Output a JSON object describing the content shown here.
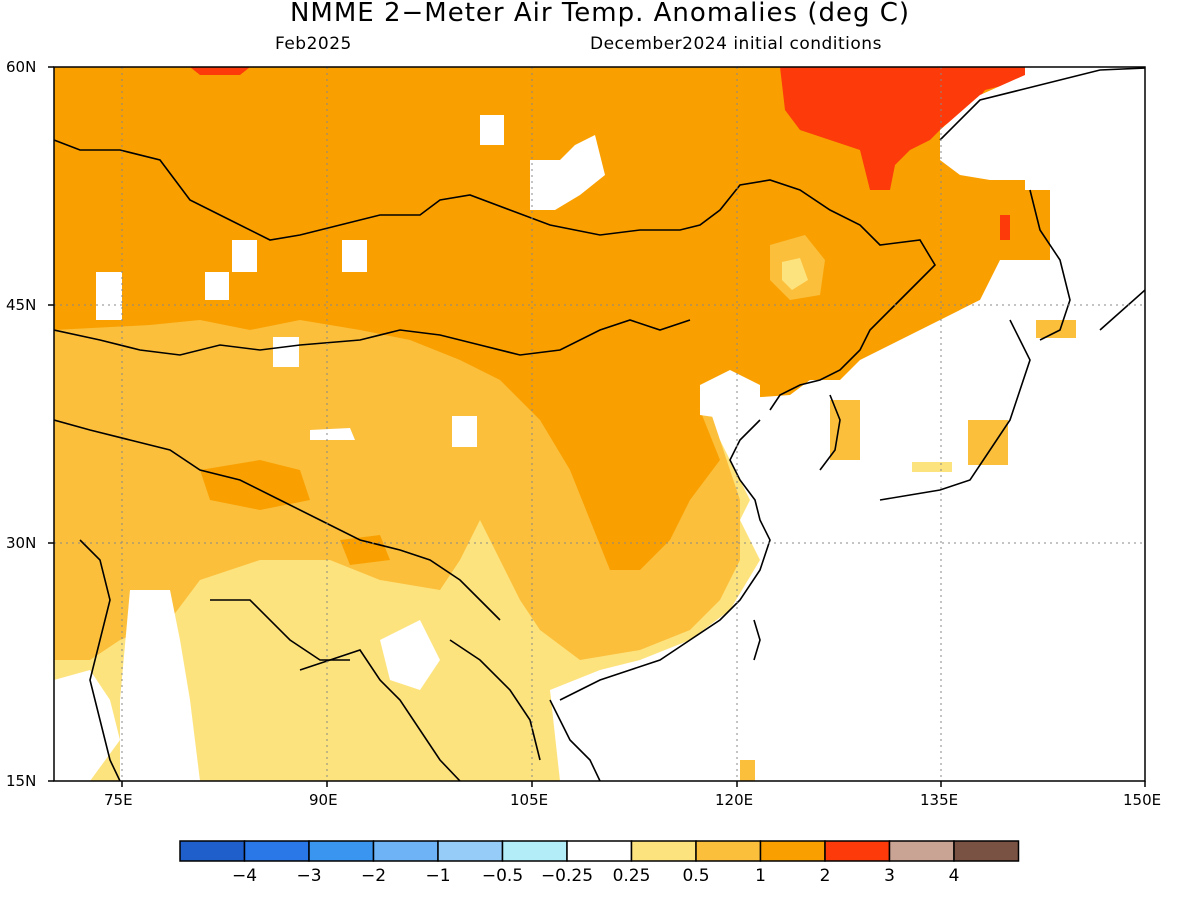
{
  "title": "NMME 2−Meter Air Temp. Anomalies (deg C)",
  "valid_month": "Feb2025",
  "init_conditions": "December2024 initial conditions",
  "lat_labels": [
    "60N",
    "45N",
    "30N",
    "15N"
  ],
  "lon_labels": [
    "75E",
    "90E",
    "105E",
    "120E",
    "135E",
    "150E"
  ],
  "colorbar": {
    "labels": [
      "−4",
      "−3",
      "−2",
      "−1",
      "−0.5",
      "−0.25",
      "0.25",
      "0.5",
      "1",
      "2",
      "3",
      "4"
    ],
    "colors": [
      "#1e5fcc",
      "#2a78e8",
      "#3a95f0",
      "#6eb3f5",
      "#95ccf8",
      "#b3eef8",
      "#ffffff",
      "#fde37e",
      "#fbbf3c",
      "#f9a000",
      "#fc3a0a",
      "#c9a394",
      "#7a5244"
    ]
  },
  "colors": {
    "band_0_25_0_5": "#fde37e",
    "band_0_5_1": "#fbbf3c",
    "band_1_2": "#f9a000",
    "band_2_3": "#fc3a0a"
  }
}
